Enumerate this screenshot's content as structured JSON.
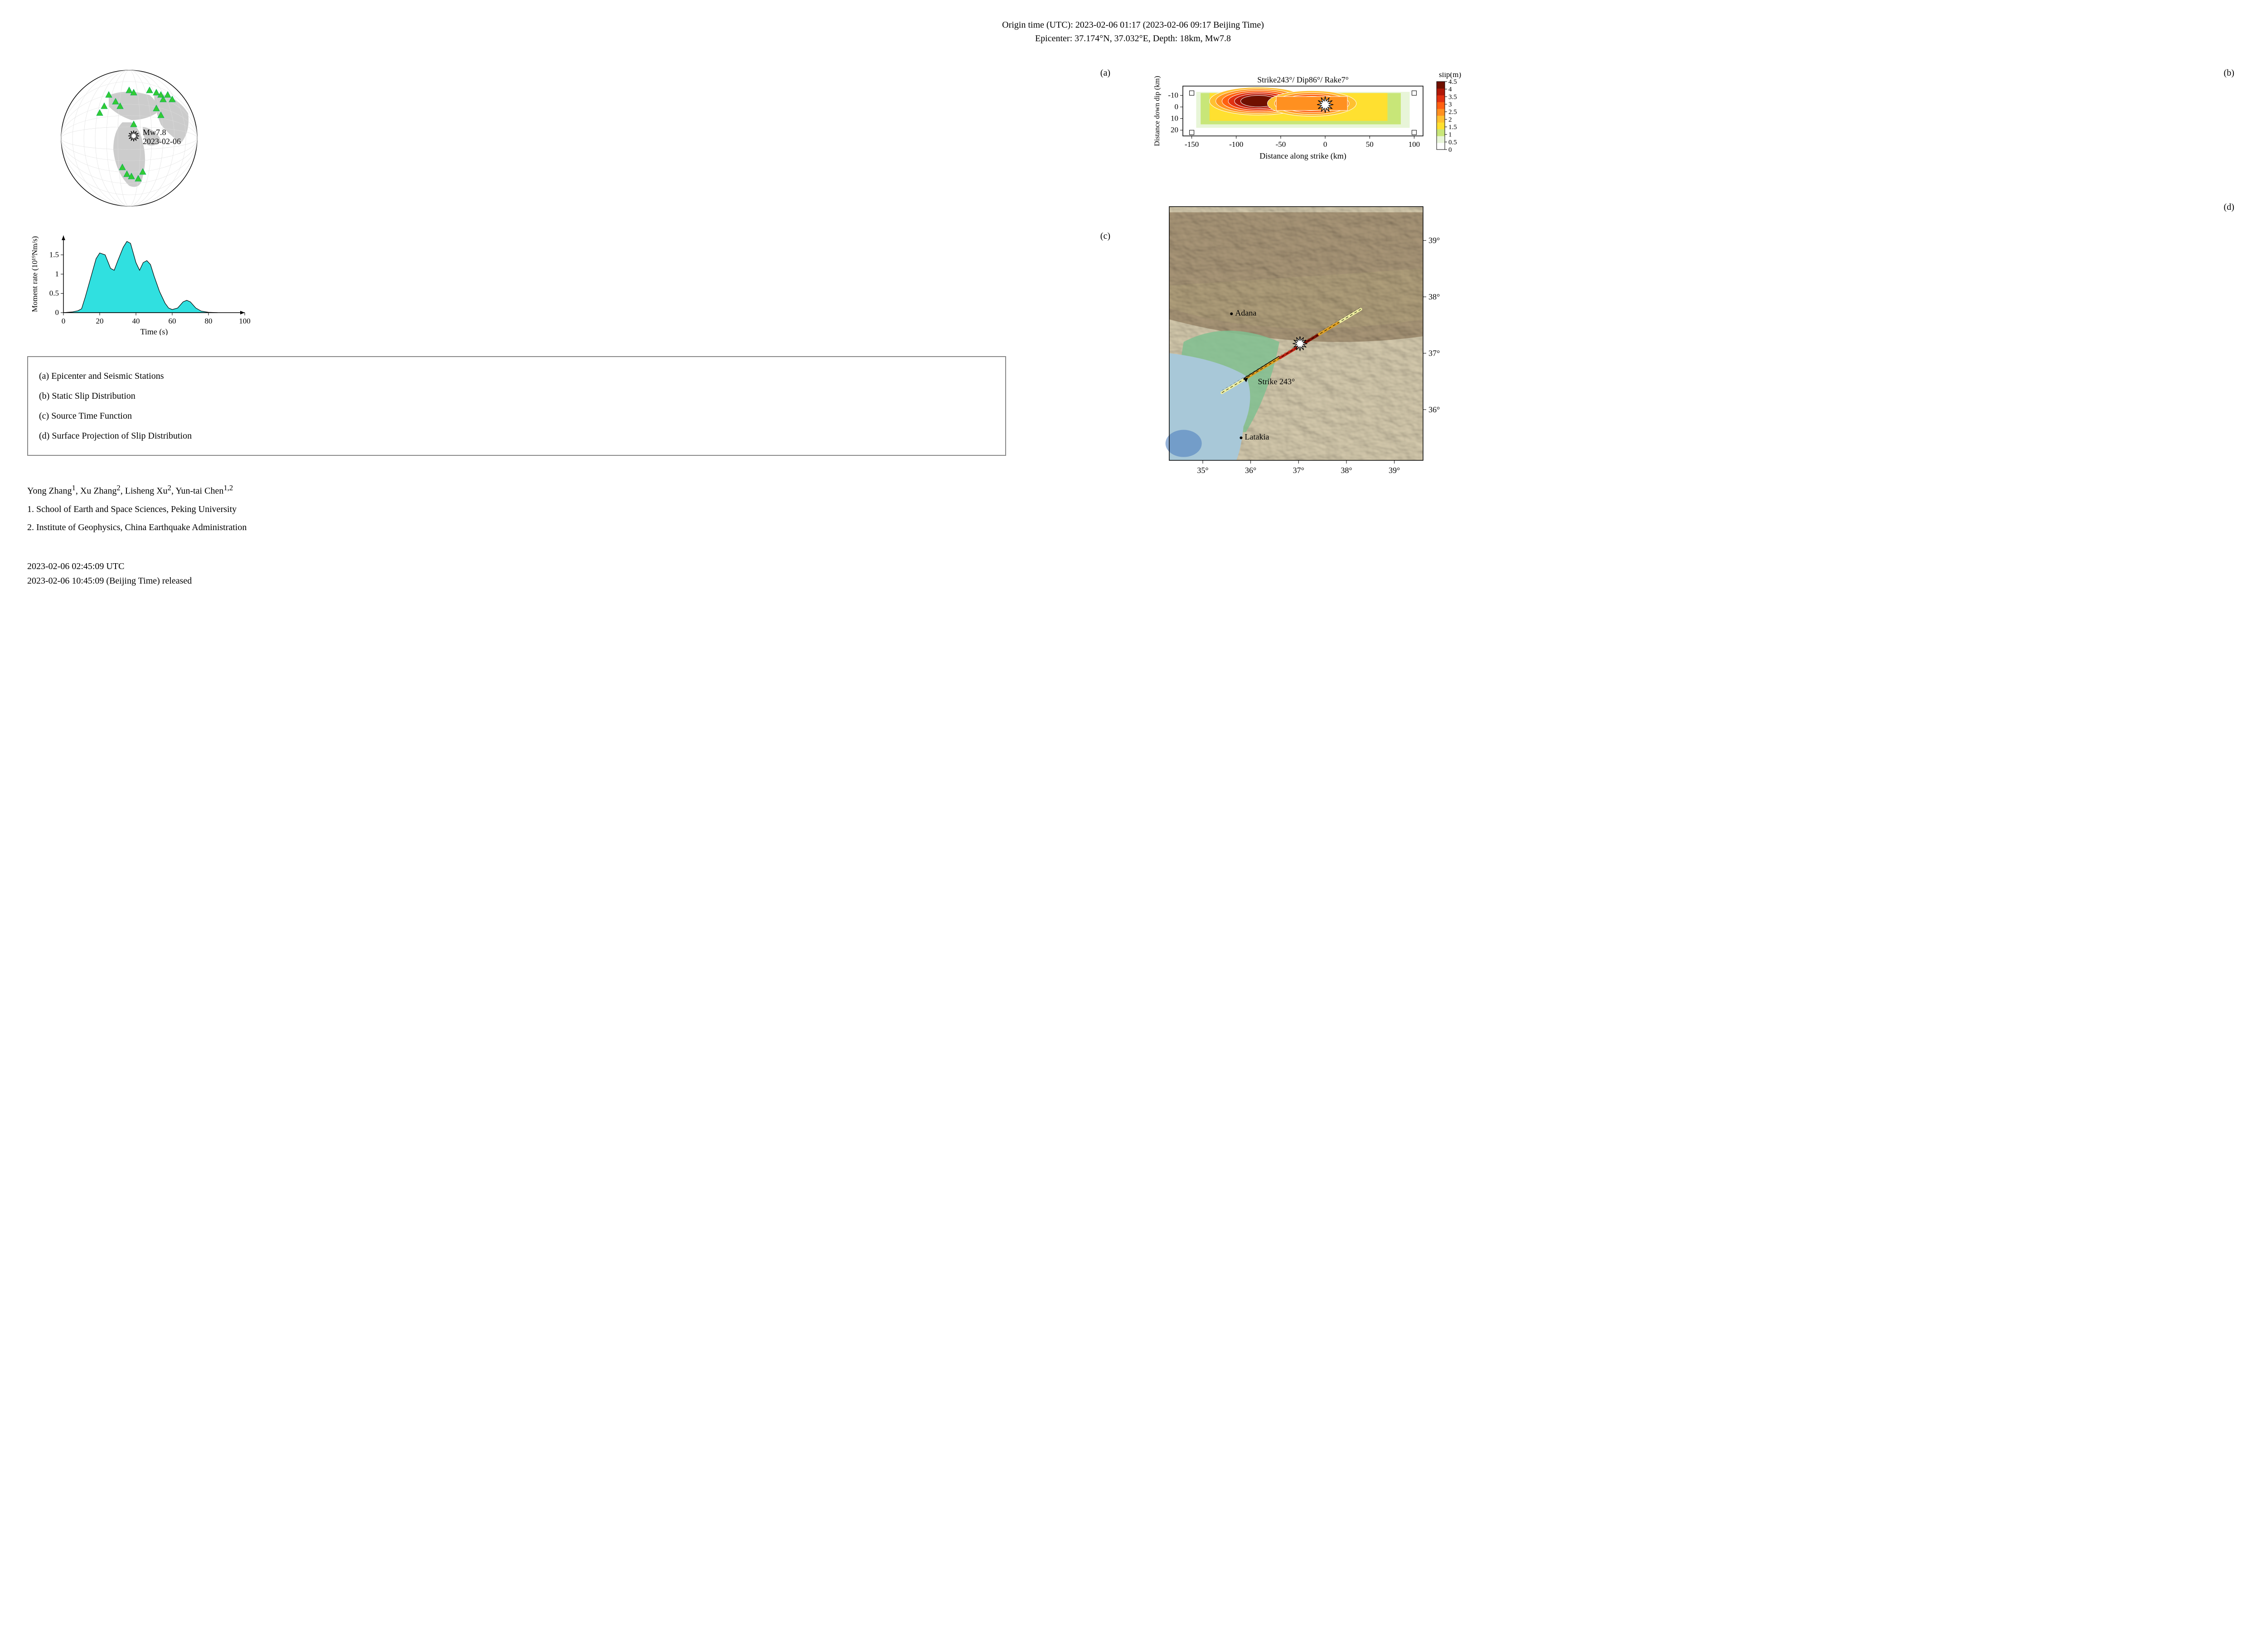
{
  "header": {
    "line1": "Origin time (UTC): 2023-02-06 01:17  (2023-02-06 09:17 Beijing Time)",
    "line2": "Epicenter: 37.174°N, 37.032°E,  Depth: 18km,  Mw7.8"
  },
  "panel_labels": {
    "a": "(a)",
    "b": "(b)",
    "c": "(c)",
    "d": "(d)"
  },
  "globe": {
    "magnitude_label": "Mw7.8",
    "date_label": "2023-02-06",
    "station_color": "#33cc33",
    "land_color": "#cccccc",
    "ocean_color": "#ffffff",
    "stations": [
      [
        120,
        70
      ],
      [
        135,
        85
      ],
      [
        110,
        95
      ],
      [
        145,
        95
      ],
      [
        100,
        110
      ],
      [
        165,
        60
      ],
      [
        175,
        65
      ],
      [
        210,
        60
      ],
      [
        225,
        65
      ],
      [
        235,
        70
      ],
      [
        240,
        80
      ],
      [
        250,
        70
      ],
      [
        260,
        80
      ],
      [
        225,
        100
      ],
      [
        235,
        115
      ],
      [
        175,
        135
      ],
      [
        150,
        230
      ],
      [
        160,
        245
      ],
      [
        170,
        250
      ],
      [
        185,
        255
      ],
      [
        195,
        240
      ]
    ],
    "epicenter": [
      175,
      160
    ]
  },
  "slip": {
    "title": "Strike243°/ Dip86°/ Rake7°",
    "xlabel": "Distance along strike (km)",
    "ylabel": "Distance down dip (km)",
    "xticks": [
      -150,
      -100,
      -50,
      0,
      50,
      100
    ],
    "yticks": [
      -10,
      0,
      10,
      20
    ],
    "colorbar_title": "slip(m)",
    "colorbar_ticks": [
      0,
      0.5,
      1,
      1.5,
      2,
      2.5,
      3,
      3.5,
      4,
      4.5
    ],
    "colors": [
      "#ffffff",
      "#e8f5d8",
      "#c8e678",
      "#ffe030",
      "#ffc030",
      "#ff9020",
      "#ff6010",
      "#e03010",
      "#b01808",
      "#701000"
    ],
    "epicenter_strike": 0,
    "epicenter_dip": -2
  },
  "stf": {
    "xlabel": "Time (s)",
    "ylabel": "Moment rate (10¹⁹Nm/s)",
    "xticks": [
      0,
      20,
      40,
      60,
      80,
      100
    ],
    "yticks": [
      0,
      0.5,
      1,
      1.5
    ],
    "fill_color": "#30e0e0",
    "data": [
      [
        0,
        0
      ],
      [
        5,
        0.02
      ],
      [
        8,
        0.05
      ],
      [
        10,
        0.1
      ],
      [
        12,
        0.4
      ],
      [
        15,
        0.9
      ],
      [
        18,
        1.4
      ],
      [
        20,
        1.55
      ],
      [
        23,
        1.5
      ],
      [
        26,
        1.15
      ],
      [
        28,
        1.1
      ],
      [
        30,
        1.35
      ],
      [
        33,
        1.7
      ],
      [
        35,
        1.85
      ],
      [
        37,
        1.8
      ],
      [
        40,
        1.3
      ],
      [
        42,
        1.1
      ],
      [
        44,
        1.3
      ],
      [
        46,
        1.35
      ],
      [
        48,
        1.25
      ],
      [
        50,
        0.95
      ],
      [
        53,
        0.55
      ],
      [
        56,
        0.25
      ],
      [
        58,
        0.12
      ],
      [
        60,
        0.08
      ],
      [
        63,
        0.12
      ],
      [
        66,
        0.28
      ],
      [
        68,
        0.32
      ],
      [
        70,
        0.28
      ],
      [
        73,
        0.12
      ],
      [
        76,
        0.04
      ],
      [
        80,
        0.01
      ],
      [
        85,
        0
      ]
    ]
  },
  "legend": {
    "a": "(a) Epicenter and Seismic Stations",
    "b": "(b) Static Slip Distribution",
    "c": "(c) Source Time Function",
    "d": "(d) Surface Projection of Slip Distribution"
  },
  "authors": {
    "line1_html": "Yong Zhang<sup>1</sup>, Xu Zhang<sup>2</sup>, Lisheng Xu<sup>2</sup>, Yun-tai Chen<sup>1,2</sup>",
    "line2": "1. School of Earth and Space Sciences, Peking University",
    "line3": "2. Institute of Geophysics, China Earthquake Administration"
  },
  "timestamps": {
    "line1": "2023-02-06 02:45:09 UTC",
    "line2": "2023-02-06 10:45:09 (Beijing Time) released"
  },
  "map": {
    "lon_ticks": [
      35,
      36,
      37,
      38,
      39
    ],
    "lat_ticks": [
      36,
      37,
      38,
      39
    ],
    "cities": [
      {
        "name": "Adana",
        "lon": 35.6,
        "lat": 37.7
      },
      {
        "name": "Latakia",
        "lon": 35.8,
        "lat": 35.5
      }
    ],
    "strike_label": "Strike 243°",
    "terrain_low": "#d8cdb0",
    "terrain_mid": "#b8a880",
    "terrain_high": "#8a7050",
    "sea_color": "#a8c8d8",
    "coast_green": "#80c090",
    "fault_colors": [
      "#f0f0a0",
      "#e0a020",
      "#c02010",
      "#801000"
    ]
  }
}
